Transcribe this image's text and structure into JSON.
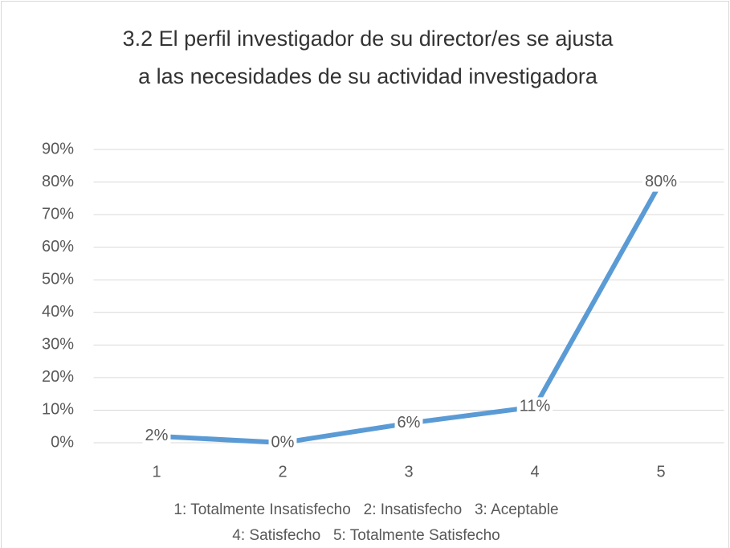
{
  "chart_data": {
    "type": "line",
    "title_lines": [
      "3.2 El perfil investigador de su director/es se ajusta",
      "a las necesidades de su actividad investigadora"
    ],
    "x_label_lines": [
      "1: Totalmente Insatisfecho   2: Insatisfecho   3: Aceptable",
      "4: Satisfecho   5: Totalmente Satisfecho"
    ],
    "categories": [
      "1",
      "2",
      "3",
      "4",
      "5"
    ],
    "values": [
      2,
      0,
      6,
      11,
      80
    ],
    "value_labels": [
      "2%",
      "0%",
      "6%",
      "11%",
      "80%"
    ],
    "color": "#5b9bd5",
    "ylim": [
      0,
      90
    ],
    "yticks": [
      {
        "value": 0,
        "label": "0%"
      },
      {
        "value": 10,
        "label": "10%"
      },
      {
        "value": 20,
        "label": "20%"
      },
      {
        "value": 30,
        "label": "30%"
      },
      {
        "value": 40,
        "label": "40%"
      },
      {
        "value": 50,
        "label": "50%"
      },
      {
        "value": 60,
        "label": "60%"
      },
      {
        "value": 70,
        "label": "70%"
      },
      {
        "value": 80,
        "label": "80%"
      },
      {
        "value": 90,
        "label": "90%"
      }
    ],
    "grid": true
  }
}
